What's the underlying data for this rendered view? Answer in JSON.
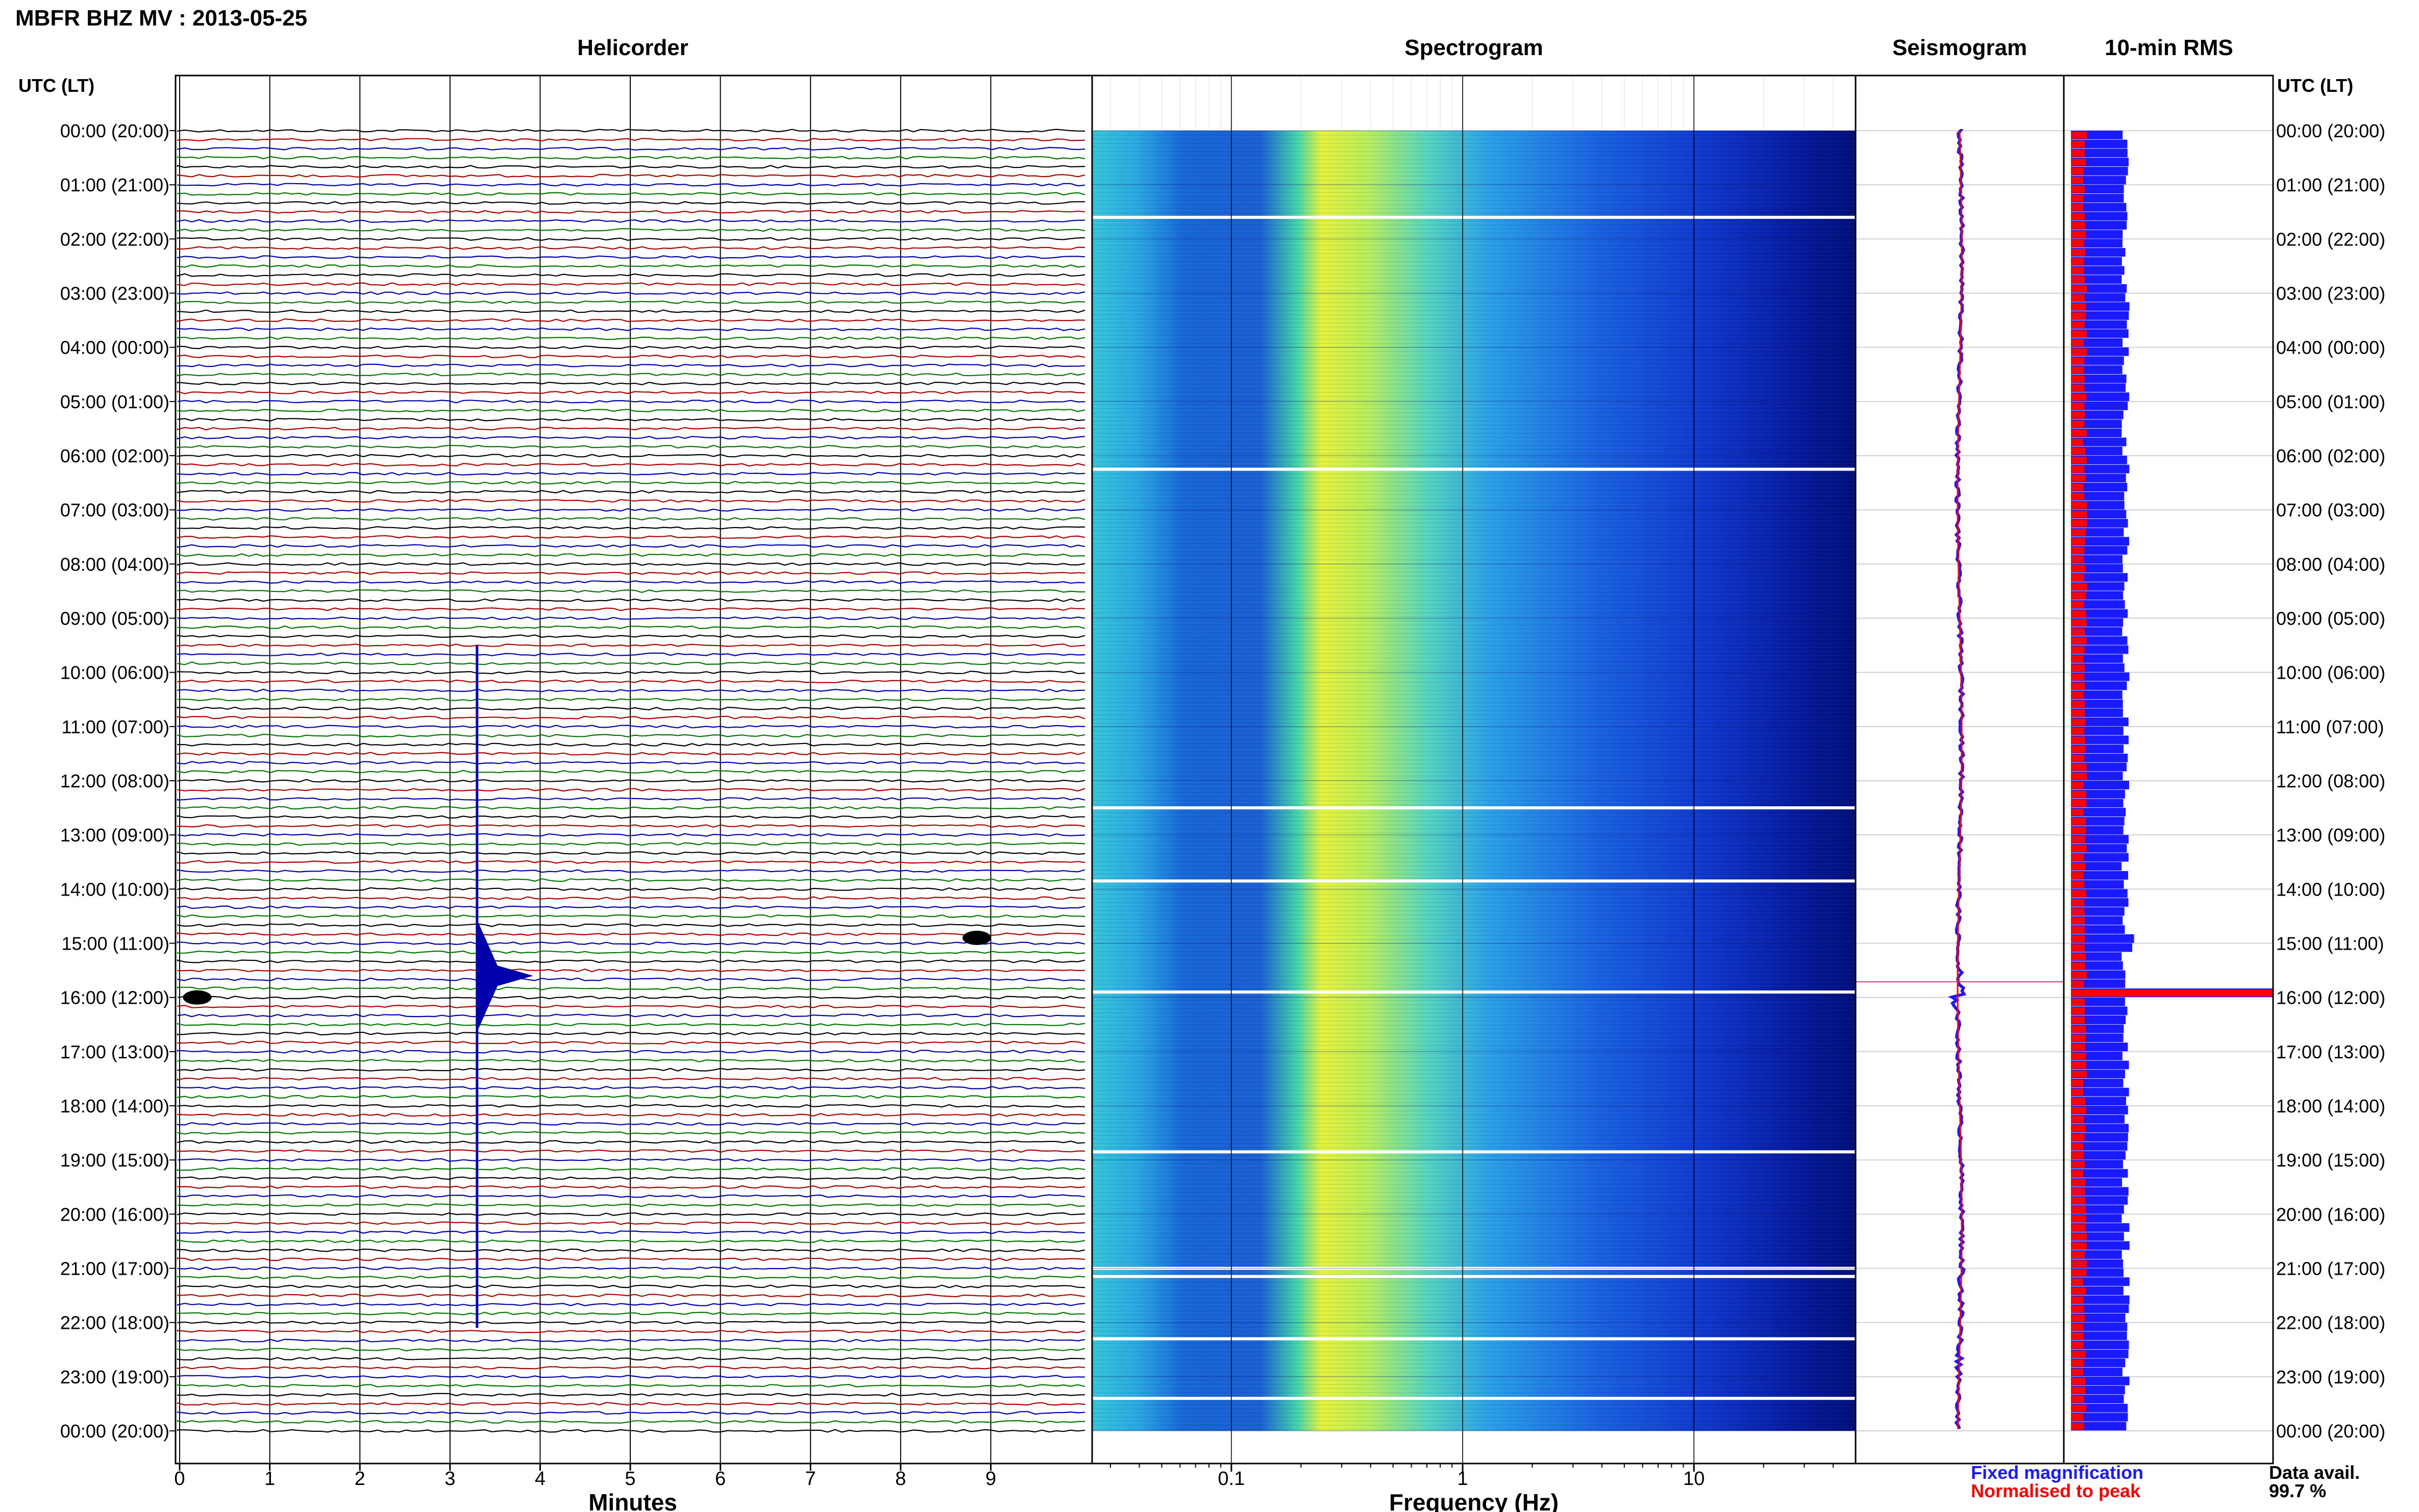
{
  "header": {
    "station_title": "MBFR BHZ MV : 2013-05-25",
    "utc_lt_left": "UTC (LT)",
    "utc_lt_right": "UTC (LT)"
  },
  "panels": {
    "helicorder": "Helicorder",
    "spectrogram": "Spectrogram",
    "seismogram": "Seismogram",
    "rms": "10-min RMS"
  },
  "time_labels": [
    "00:00 (20:00)",
    "01:00 (21:00)",
    "02:00 (22:00)",
    "03:00 (23:00)",
    "04:00 (00:00)",
    "05:00 (01:00)",
    "06:00 (02:00)",
    "07:00 (03:00)",
    "08:00 (04:00)",
    "09:00 (05:00)",
    "10:00 (06:00)",
    "11:00 (07:00)",
    "12:00 (08:00)",
    "13:00 (09:00)",
    "14:00 (10:00)",
    "15:00 (11:00)",
    "16:00 (12:00)",
    "17:00 (13:00)",
    "18:00 (14:00)",
    "19:00 (15:00)",
    "20:00 (16:00)",
    "21:00 (17:00)",
    "22:00 (18:00)",
    "23:00 (19:00)",
    "00:00 (20:00)"
  ],
  "footer": {
    "fixed_magnification": "Fixed magnification",
    "normalised_to_peak": "Normalised to peak",
    "data_avail_label": "Data avail.",
    "data_avail_value": "99.7 %"
  },
  "colors": {
    "fixed_magnification": "#1a1aff",
    "normalised_to_peak": "#ff0000",
    "trace_cycle": [
      "#000000",
      "#aa0000",
      "#0000aa",
      "#007700"
    ]
  },
  "chart_data": [
    {
      "type": "line",
      "name": "helicorder",
      "xlabel": "Minutes",
      "x_ticks": [
        0,
        1,
        2,
        3,
        4,
        5,
        6,
        7,
        8,
        9
      ],
      "xlim": [
        0,
        10
      ],
      "rows_per_hour": 6,
      "events": [
        {
          "hour": 15.6,
          "minute": 3.3,
          "amplitude": "large"
        },
        {
          "hour": 14.9,
          "minute": 8.8,
          "amplitude": "medium"
        },
        {
          "hour": 16.0,
          "minute": 0.15,
          "amplitude": "medium"
        }
      ]
    },
    {
      "type": "heatmap",
      "name": "spectrogram",
      "xlabel": "Frequency (Hz)",
      "x_scale": "log",
      "x_ticks": [
        "0.1",
        "1",
        "10"
      ],
      "xlim": [
        0.025,
        50
      ],
      "colormap": "jet"
    },
    {
      "type": "line",
      "name": "seismogram"
    },
    {
      "type": "bar",
      "name": "10-min RMS",
      "series": [
        {
          "name": "Fixed magnification",
          "color": "#1a1aff",
          "typical": 0.27,
          "peak_hour": 15.8,
          "peak": 1.0
        },
        {
          "name": "Normalised to peak",
          "color": "#ff0000",
          "typical": 0.07,
          "peak_hour": 15.8,
          "peak": 1.0
        }
      ]
    }
  ]
}
